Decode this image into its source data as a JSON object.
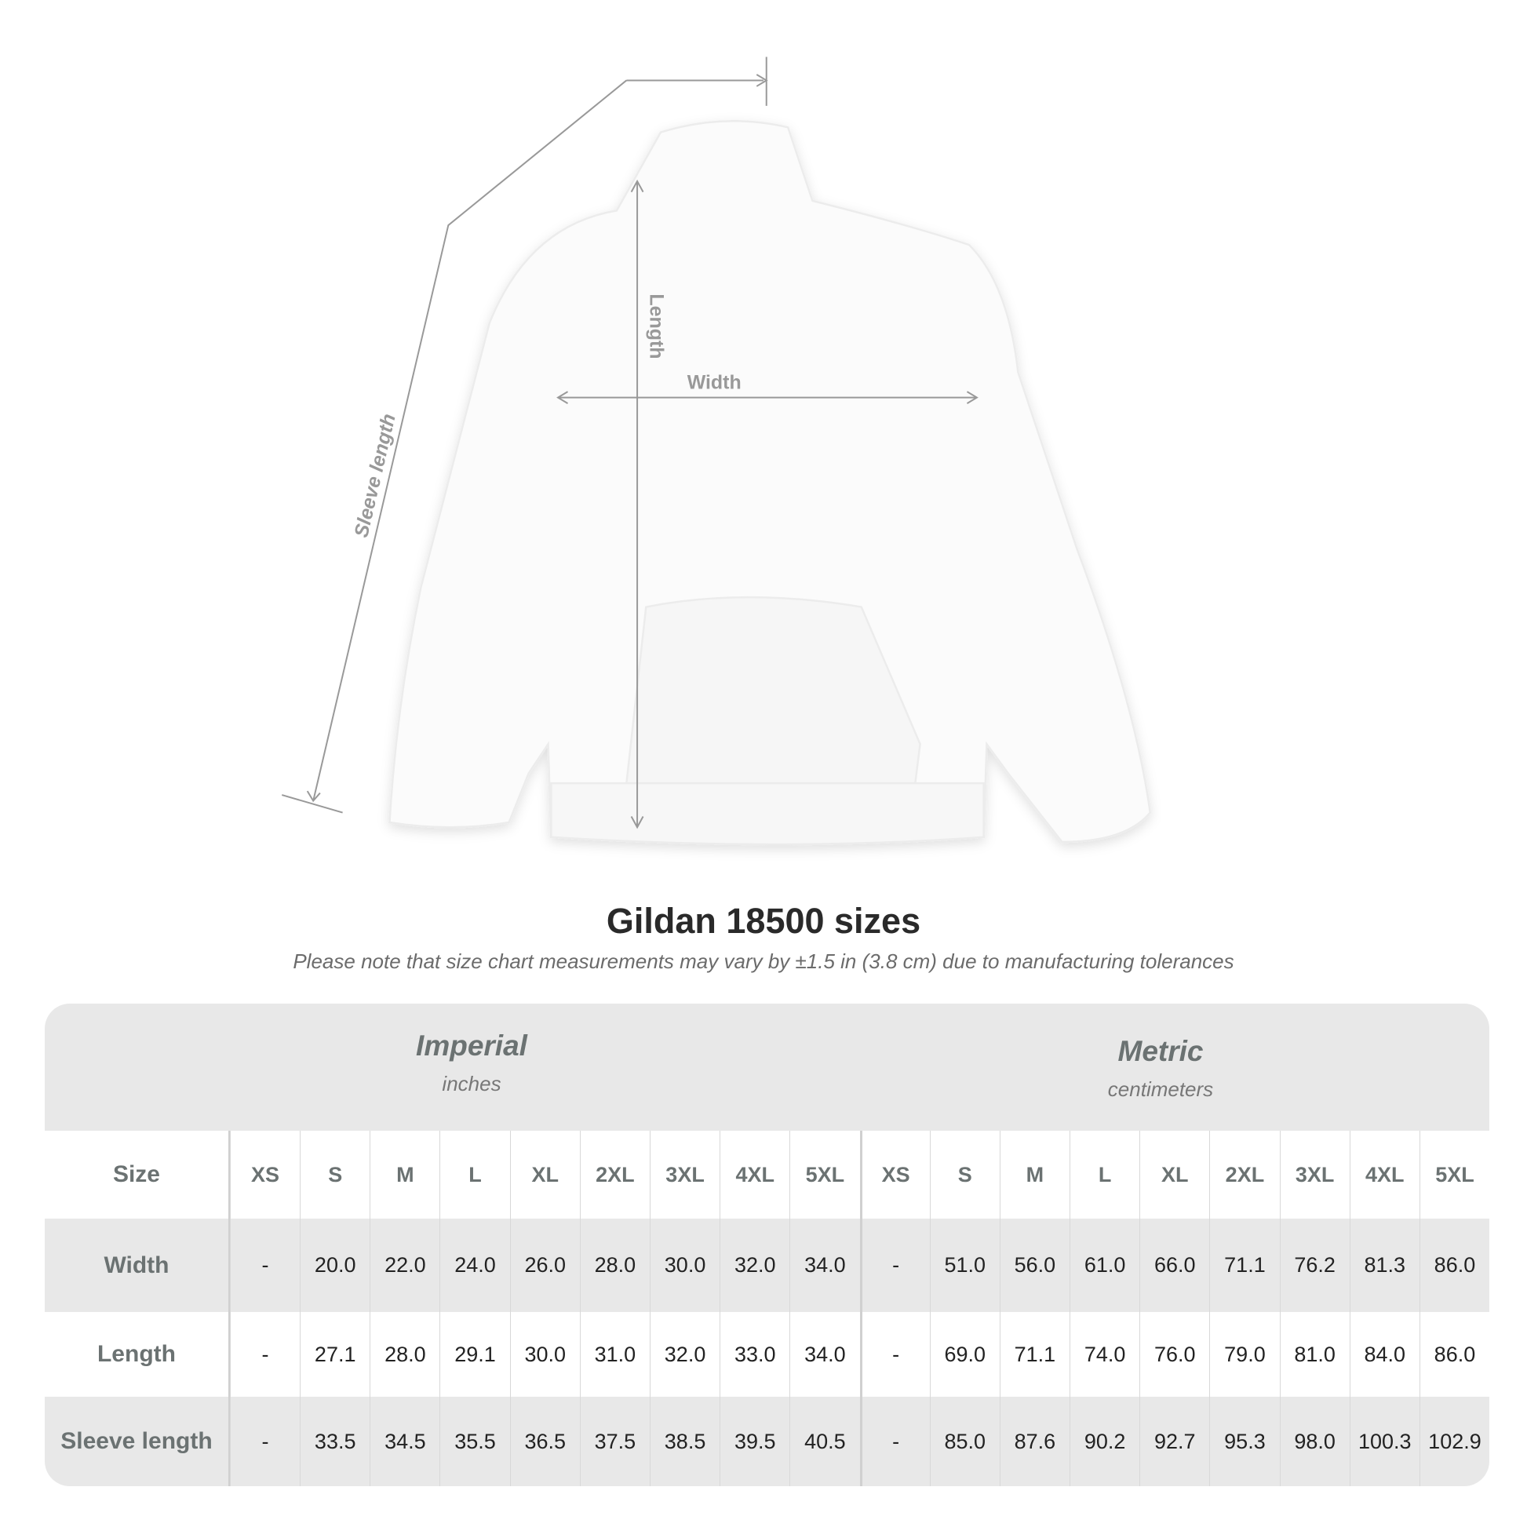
{
  "diagram": {
    "length_label": "Length",
    "width_label": "Width",
    "sleeve_label": "Sleeve length"
  },
  "title": "Gildan 18500 sizes",
  "note": "Please note that size chart measurements may vary by ±1.5 in (3.8 cm) due to manufacturing tolerances",
  "table": {
    "imperial": {
      "name": "Imperial",
      "unit": "inches"
    },
    "metric": {
      "name": "Metric",
      "unit": "centimeters"
    },
    "size_label": "Size",
    "sizes": [
      "XS",
      "S",
      "M",
      "L",
      "XL",
      "2XL",
      "3XL",
      "4XL",
      "5XL"
    ],
    "rows": [
      {
        "label": "Width",
        "imperial": [
          "-",
          "20.0",
          "22.0",
          "24.0",
          "26.0",
          "28.0",
          "30.0",
          "32.0",
          "34.0"
        ],
        "metric": [
          "-",
          "51.0",
          "56.0",
          "61.0",
          "66.0",
          "71.1",
          "76.2",
          "81.3",
          "86.0"
        ]
      },
      {
        "label": "Length",
        "imperial": [
          "-",
          "27.1",
          "28.0",
          "29.1",
          "30.0",
          "31.0",
          "32.0",
          "33.0",
          "34.0"
        ],
        "metric": [
          "-",
          "69.0",
          "71.1",
          "74.0",
          "76.0",
          "79.0",
          "81.0",
          "84.0",
          "86.0"
        ]
      },
      {
        "label": "Sleeve length",
        "imperial": [
          "-",
          "33.5",
          "34.5",
          "35.5",
          "36.5",
          "37.5",
          "38.5",
          "39.5",
          "40.5"
        ],
        "metric": [
          "-",
          "85.0",
          "87.6",
          "90.2",
          "92.7",
          "95.3",
          "98.0",
          "100.3",
          "102.9"
        ]
      }
    ]
  }
}
